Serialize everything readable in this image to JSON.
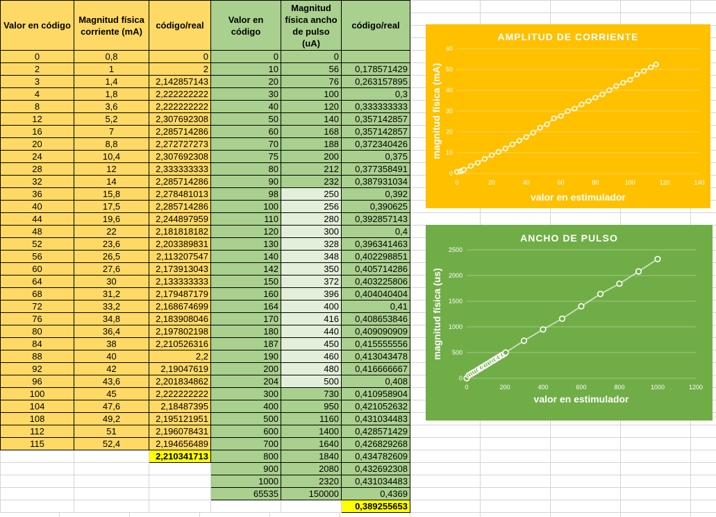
{
  "table": {
    "headers": [
      "Valor en código",
      "Magnitud física corriente (mA)",
      "código/real",
      "Valor en código",
      "Magnitud física ancho de pulso (uA)",
      "código/real"
    ],
    "rows": [
      [
        "0",
        "0,8",
        "0",
        "0",
        "0",
        ""
      ],
      [
        "2",
        "1",
        "2",
        "10",
        "56",
        "0,178571429"
      ],
      [
        "3",
        "1,4",
        "2,142857143",
        "20",
        "76",
        "0,263157895"
      ],
      [
        "4",
        "1,8",
        "2,222222222",
        "30",
        "100",
        "0,3"
      ],
      [
        "8",
        "3,6",
        "2,222222222",
        "40",
        "120",
        "0,333333333"
      ],
      [
        "12",
        "5,2",
        "2,307692308",
        "50",
        "140",
        "0,357142857"
      ],
      [
        "16",
        "7",
        "2,285714286",
        "60",
        "168",
        "0,357142857"
      ],
      [
        "20",
        "8,8",
        "2,272727273",
        "70",
        "188",
        "0,372340426"
      ],
      [
        "24",
        "10,4",
        "2,307692308",
        "75",
        "200",
        "0,375"
      ],
      [
        "28",
        "12",
        "2,333333333",
        "80",
        "212",
        "0,377358491"
      ],
      [
        "32",
        "14",
        "2,285714286",
        "90",
        "232",
        "0,387931034"
      ],
      [
        "36",
        "15,8",
        "2,278481013",
        "98",
        "250",
        "0,392"
      ],
      [
        "40",
        "17,5",
        "2,285714286",
        "100",
        "256",
        "0,390625"
      ],
      [
        "44",
        "19,6",
        "2,244897959",
        "110",
        "280",
        "0,392857143"
      ],
      [
        "48",
        "22",
        "2,181818182",
        "120",
        "300",
        "0,4"
      ],
      [
        "52",
        "23,6",
        "2,203389831",
        "130",
        "328",
        "0,396341463"
      ],
      [
        "56",
        "26,5",
        "2,113207547",
        "140",
        "348",
        "0,402298851"
      ],
      [
        "60",
        "27,6",
        "2,173913043",
        "142",
        "350",
        "0,405714286"
      ],
      [
        "64",
        "30",
        "2,133333333",
        "150",
        "372",
        "0,403225806"
      ],
      [
        "68",
        "31,2",
        "2,179487179",
        "160",
        "396",
        "0,404040404"
      ],
      [
        "72",
        "33,2",
        "2,168674699",
        "164",
        "400",
        "0,41"
      ],
      [
        "76",
        "34,8",
        "2,183908046",
        "170",
        "416",
        "0,408653846"
      ],
      [
        "80",
        "36,4",
        "2,197802198",
        "180",
        "440",
        "0,409090909"
      ],
      [
        "84",
        "38",
        "2,210526316",
        "187",
        "450",
        "0,415555556"
      ],
      [
        "88",
        "40",
        "2,2",
        "190",
        "460",
        "0,413043478"
      ],
      [
        "92",
        "42",
        "2,19047619",
        "200",
        "480",
        "0,416666667"
      ],
      [
        "96",
        "43,6",
        "2,201834862",
        "204",
        "500",
        "0,408"
      ],
      [
        "100",
        "45",
        "2,222222222",
        "300",
        "730",
        "0,410958904"
      ],
      [
        "104",
        "47,6",
        "2,18487395",
        "400",
        "950",
        "0,421052632"
      ],
      [
        "108",
        "49,2",
        "2,195121951",
        "500",
        "1160",
        "0,431034483"
      ],
      [
        "112",
        "51",
        "2,196078431",
        "600",
        "1400",
        "0,428571429"
      ],
      [
        "115",
        "52,4",
        "2,194656489",
        "700",
        "1640",
        "0,426829268"
      ],
      [
        "",
        "",
        "2,210341713",
        "800",
        "1840",
        "0,434782609"
      ],
      [
        "",
        "",
        "",
        "900",
        "2080",
        "0,432692308"
      ],
      [
        "",
        "",
        "",
        "1000",
        "2320",
        "0,431034483"
      ],
      [
        "",
        "",
        "",
        "65535",
        "150000",
        "0,4369"
      ],
      [
        "",
        "",
        "",
        "",
        "",
        "0,389255653"
      ]
    ]
  },
  "chart_data": [
    {
      "type": "scatter",
      "title": "AMPLITUD DE CORRIENTE",
      "xlabel": "valor en estimulador",
      "ylabel": "magnitud física (mA)",
      "xlim": [
        0,
        140
      ],
      "ylim": [
        0,
        60
      ],
      "xticks": [
        "0",
        "20",
        "40",
        "60",
        "80",
        "100",
        "120",
        "140"
      ],
      "yticks": [
        "0",
        "10",
        "20",
        "30",
        "40",
        "50",
        "60"
      ],
      "grid": true,
      "background": "#ffc000",
      "x": [
        0,
        2,
        3,
        4,
        8,
        12,
        16,
        20,
        24,
        28,
        32,
        36,
        40,
        44,
        48,
        52,
        56,
        60,
        64,
        68,
        72,
        76,
        80,
        84,
        88,
        92,
        96,
        100,
        104,
        108,
        112,
        115
      ],
      "y": [
        0.8,
        1,
        1.4,
        1.8,
        3.6,
        5.2,
        7,
        8.8,
        10.4,
        12,
        14,
        15.8,
        17.5,
        19.6,
        22,
        23.6,
        26.5,
        27.6,
        30,
        31.2,
        33.2,
        34.8,
        36.4,
        38,
        40,
        42,
        43.6,
        45,
        47.6,
        49.2,
        51,
        52.4
      ]
    },
    {
      "type": "scatter",
      "title": "ANCHO DE PULSO",
      "xlabel": "valor en estimulador",
      "ylabel": "magnitud física (us)",
      "xlim": [
        0,
        1200
      ],
      "ylim": [
        0,
        2500
      ],
      "xticks": [
        "0",
        "200",
        "400",
        "600",
        "800",
        "1000",
        "1200"
      ],
      "yticks": [
        "0",
        "500",
        "1000",
        "1500",
        "2000",
        "2500"
      ],
      "grid": true,
      "background": "#70ad47",
      "x": [
        0,
        10,
        20,
        30,
        40,
        50,
        60,
        70,
        75,
        80,
        90,
        98,
        100,
        110,
        120,
        130,
        140,
        142,
        150,
        160,
        164,
        170,
        180,
        187,
        190,
        200,
        204,
        300,
        400,
        500,
        600,
        700,
        800,
        900,
        1000
      ],
      "y": [
        0,
        56,
        76,
        100,
        120,
        140,
        168,
        188,
        200,
        212,
        232,
        250,
        256,
        280,
        300,
        328,
        348,
        350,
        372,
        396,
        400,
        416,
        440,
        450,
        460,
        480,
        500,
        730,
        950,
        1160,
        1400,
        1640,
        1840,
        2080,
        2320
      ]
    }
  ]
}
